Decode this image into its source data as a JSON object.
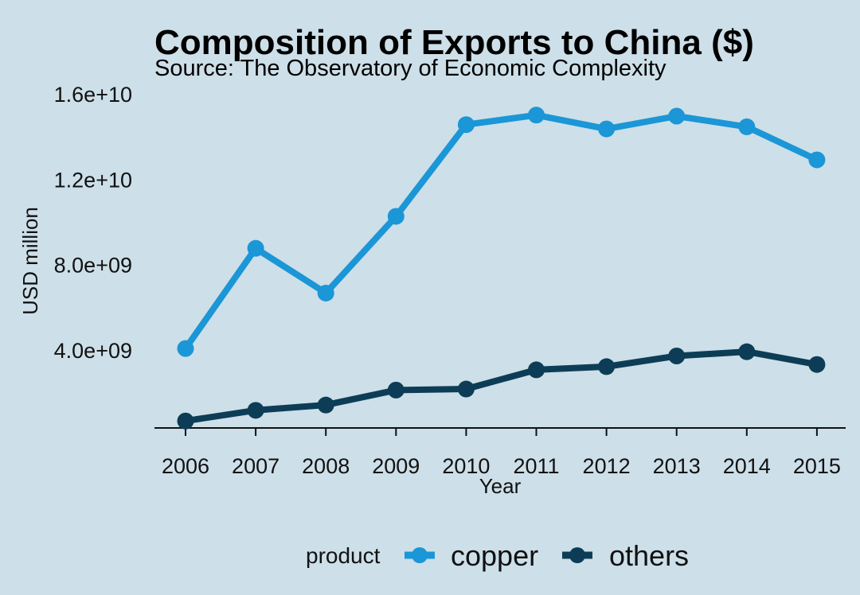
{
  "chart_data": {
    "type": "line",
    "title": "Composition of Exports to China ($)",
    "subtitle": "Source: The Observatory of Economic Complexity",
    "xlabel": "Year",
    "ylabel": "USD million",
    "x": [
      2006,
      2007,
      2008,
      2009,
      2010,
      2011,
      2012,
      2013,
      2014,
      2015
    ],
    "ylim": [
      0,
      16000000000
    ],
    "y_ticks": [
      4000000000,
      8000000000,
      12000000000,
      16000000000
    ],
    "y_tick_labels": [
      "4.0e+09",
      "8.0e+09",
      "1.2e+10",
      "1.6e+10"
    ],
    "grid": false,
    "legend": {
      "title": "product",
      "placement": "bottom"
    },
    "series": [
      {
        "name": "copper",
        "color": "#1b96d6",
        "values": [
          4100000000,
          8800000000,
          6700000000,
          10300000000,
          14600000000,
          15050000000,
          14400000000,
          15000000000,
          14500000000,
          12950000000
        ]
      },
      {
        "name": "others",
        "color": "#0d3d56",
        "values": [
          700000000,
          1200000000,
          1450000000,
          2150000000,
          2200000000,
          3100000000,
          3250000000,
          3750000000,
          3950000000,
          3350000000
        ]
      }
    ]
  }
}
